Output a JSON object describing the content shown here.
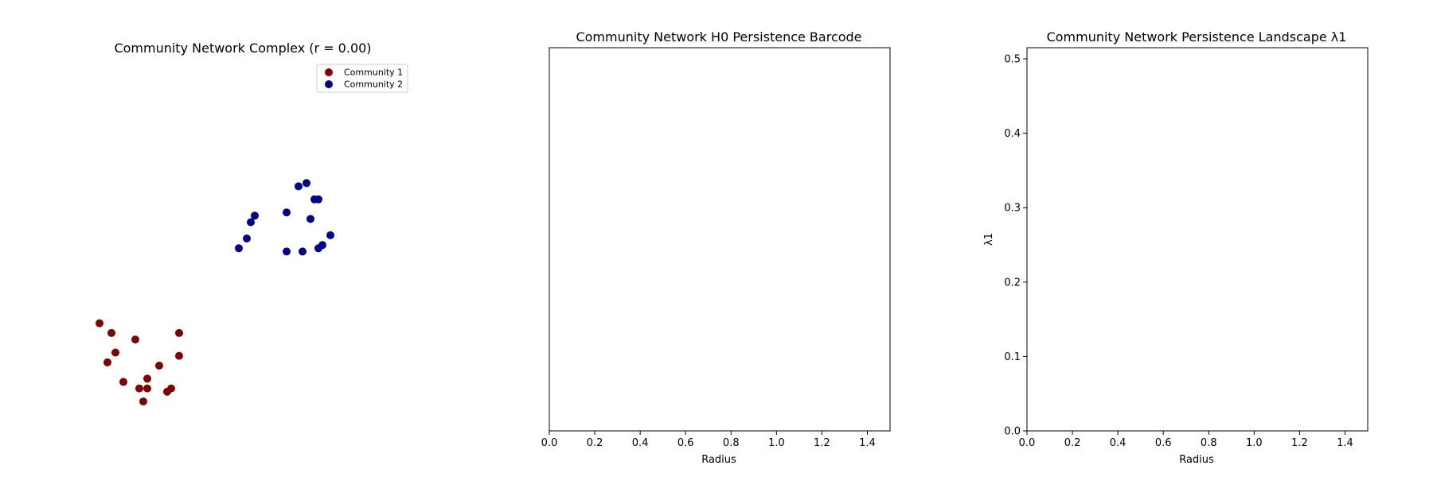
{
  "chart_data": [
    {
      "type": "scatter",
      "title": "Community Network Complex (r = 0.00)",
      "legend_position": "top-right",
      "axes_visible": false,
      "series": [
        {
          "name": "Community 1",
          "color": "#800000",
          "points": [
            [
              0.13,
              0.24
            ],
            [
              0.16,
              0.21
            ],
            [
              0.17,
              0.15
            ],
            [
              0.15,
              0.12
            ],
            [
              0.19,
              0.06
            ],
            [
              0.22,
              0.19
            ],
            [
              0.23,
              0.04
            ],
            [
              0.24,
              0.0
            ],
            [
              0.25,
              0.07
            ],
            [
              0.25,
              0.04
            ],
            [
              0.28,
              0.11
            ],
            [
              0.31,
              0.04
            ],
            [
              0.3,
              0.03
            ],
            [
              0.33,
              0.21
            ],
            [
              0.33,
              0.14
            ]
          ]
        },
        {
          "name": "Community 2",
          "color": "#00008b",
          "points": [
            [
              0.48,
              0.47
            ],
            [
              0.5,
              0.5
            ],
            [
              0.51,
              0.55
            ],
            [
              0.52,
              0.57
            ],
            [
              0.6,
              0.46
            ],
            [
              0.64,
              0.46
            ],
            [
              0.6,
              0.58
            ],
            [
              0.66,
              0.56
            ],
            [
              0.68,
              0.47
            ],
            [
              0.69,
              0.48
            ],
            [
              0.71,
              0.51
            ],
            [
              0.67,
              0.62
            ],
            [
              0.68,
              0.62
            ],
            [
              0.63,
              0.66
            ],
            [
              0.65,
              0.67
            ]
          ]
        }
      ]
    },
    {
      "type": "bar",
      "title": "Community Network H0 Persistence Barcode",
      "xlabel": "Radius",
      "xlim": [
        0,
        1.5
      ],
      "xticks": [
        "0.0",
        "0.2",
        "0.4",
        "0.6",
        "0.8",
        "1.0",
        "1.2",
        "1.4"
      ],
      "bars": []
    },
    {
      "type": "line",
      "title": "Community Network Persistence Landscape λ1",
      "xlabel": "Radius",
      "ylabel": "λ1",
      "xlim": [
        0,
        1.5
      ],
      "ylim": [
        0,
        0.5
      ],
      "xticks": [
        "0.0",
        "0.2",
        "0.4",
        "0.6",
        "0.8",
        "1.0",
        "1.2",
        "1.4"
      ],
      "yticks": [
        "0.0",
        "0.1",
        "0.2",
        "0.3",
        "0.4",
        "0.5"
      ],
      "series": []
    }
  ]
}
